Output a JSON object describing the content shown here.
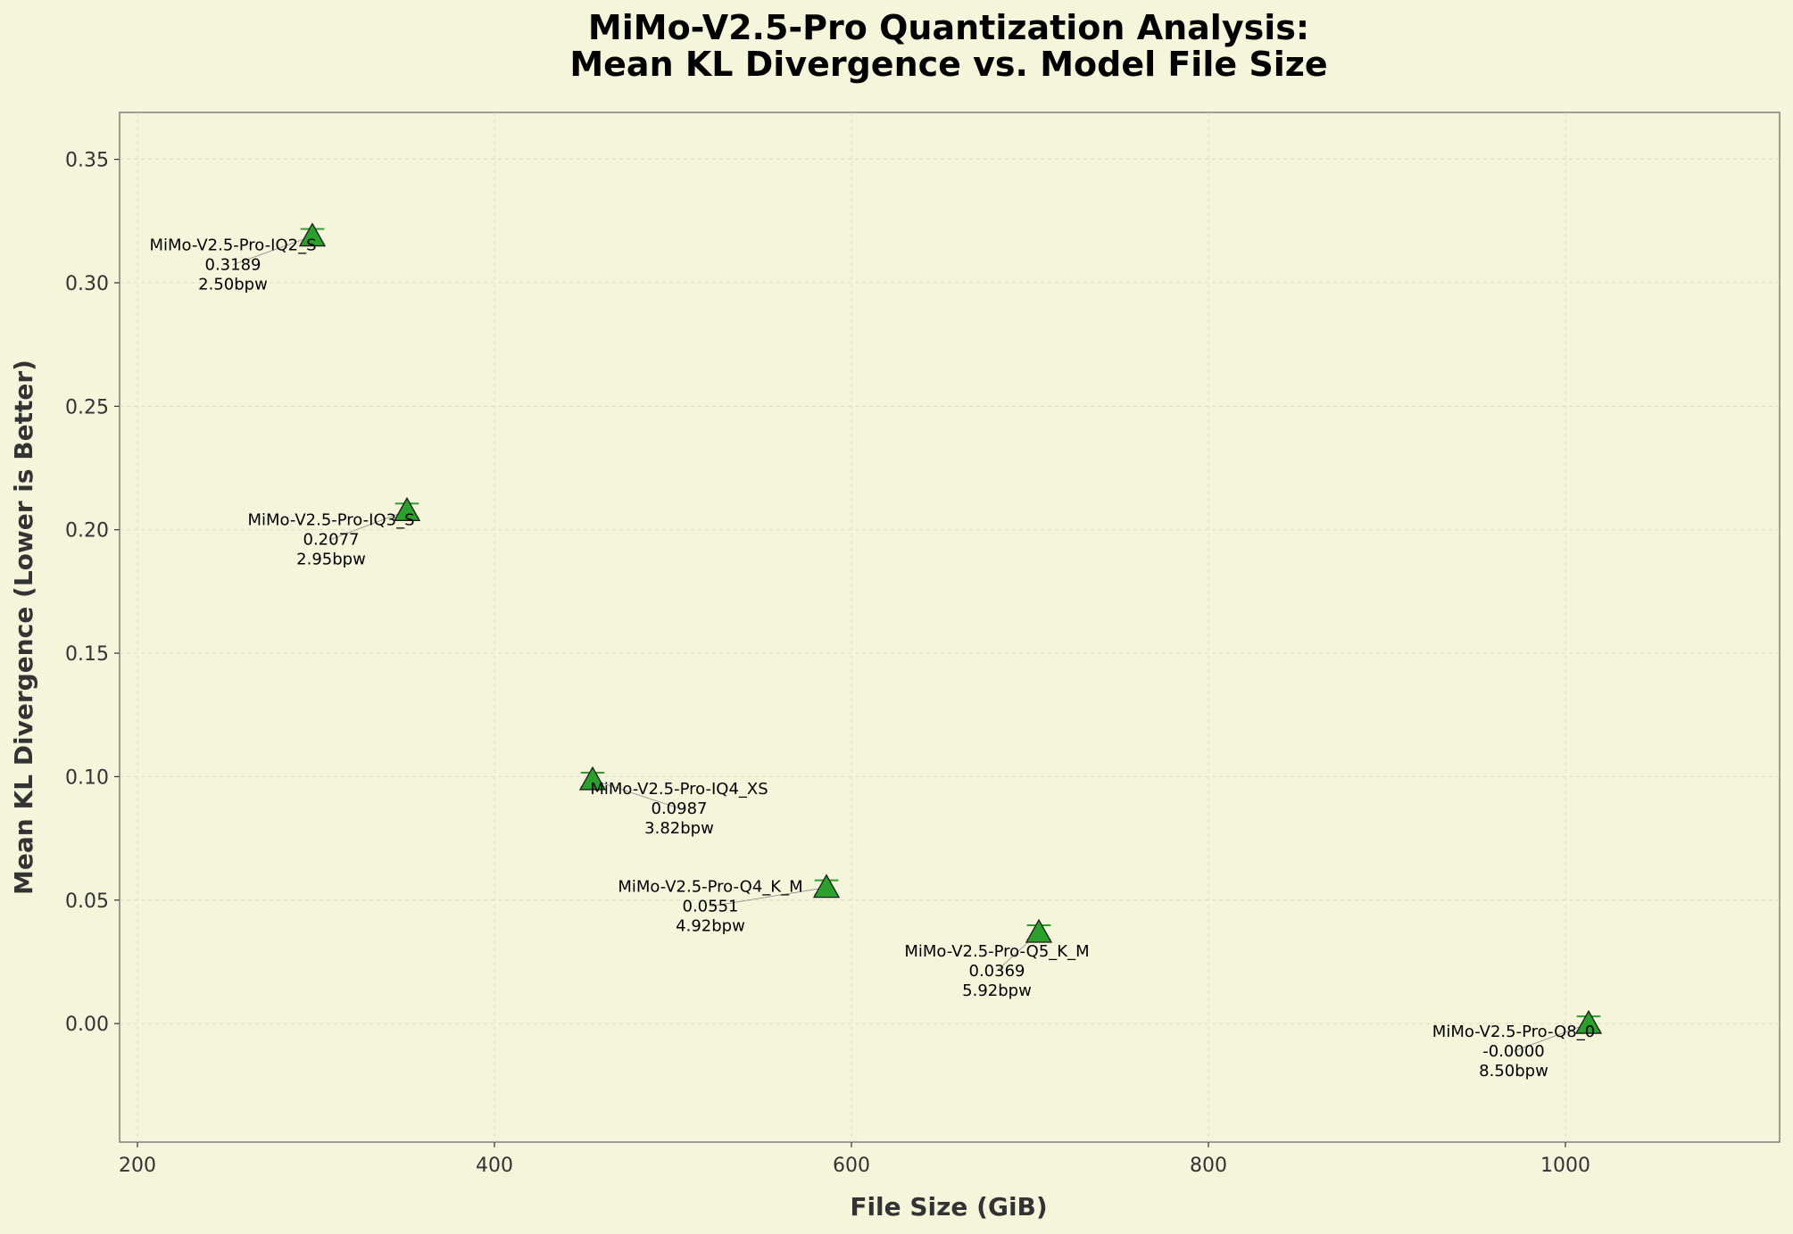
{
  "chart_data": {
    "type": "scatter",
    "title": "MiMo-V2.5-Pro Quantization Analysis:",
    "subtitle": "Mean KL Divergence vs. Model File Size",
    "xlabel": "File Size (GiB)",
    "ylabel": "Mean KL Divergence (Lower is Better)",
    "xlim": [
      190,
      1120
    ],
    "ylim": [
      -0.048,
      0.369
    ],
    "xticks": [
      "200",
      "400",
      "600",
      "800",
      "1000"
    ],
    "yticks": [
      "0.00",
      "0.05",
      "0.10",
      "0.15",
      "0.20",
      "0.25",
      "0.30",
      "0.35"
    ],
    "grid": true,
    "marker": "triangle",
    "colors": {
      "marker_fill": "#2ca02c",
      "marker_edge": "#1a1a1a",
      "background": "#f5f5dc",
      "grid": "#d9d9c7"
    },
    "points": [
      {
        "name": "MiMo-V2.5-Pro-IQ2_S",
        "x": 298,
        "y": 0.3189,
        "value_label": "0.3189",
        "bpw_label": "2.50bpw"
      },
      {
        "name": "MiMo-V2.5-Pro-IQ3_S",
        "x": 351,
        "y": 0.2077,
        "value_label": "0.2077",
        "bpw_label": "2.95bpw"
      },
      {
        "name": "MiMo-V2.5-Pro-IQ4_XS",
        "x": 455,
        "y": 0.0987,
        "value_label": "0.0987",
        "bpw_label": "3.82bpw"
      },
      {
        "name": "MiMo-V2.5-Pro-Q4_K_M",
        "x": 586,
        "y": 0.0551,
        "value_label": "0.0551",
        "bpw_label": "4.92bpw"
      },
      {
        "name": "MiMo-V2.5-Pro-Q5_K_M",
        "x": 705,
        "y": 0.0369,
        "value_label": "0.0369",
        "bpw_label": "5.92bpw"
      },
      {
        "name": "MiMo-V2.5-Pro-Q8_0",
        "x": 1013,
        "y": -0.0,
        "value_label": "-0.0000",
        "bpw_label": "8.50bpw"
      }
    ]
  }
}
